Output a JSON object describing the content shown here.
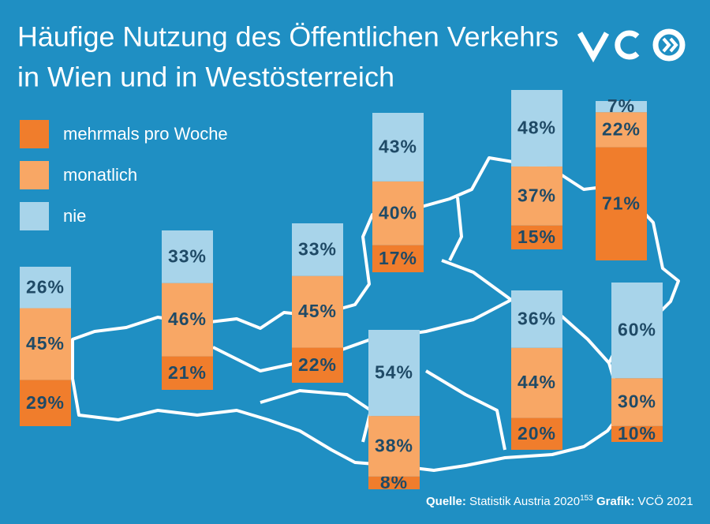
{
  "chart_data": {
    "type": "stacked_bar",
    "title": [
      "Häufige Nutzung des Öffentlichen Verkehrs",
      "in Wien und in Westösterreich"
    ],
    "categories": [
      null,
      null,
      null,
      null,
      null,
      null,
      null,
      null,
      null
    ],
    "series": [
      {
        "name": "mehrmals pro Woche",
        "color": "#f07d2c",
        "values": [
          29,
          21,
          22,
          17,
          15,
          71,
          8,
          20,
          10
        ],
        "value_labels": [
          "29%",
          "21%",
          "22%",
          "17%",
          "15%",
          "71%",
          "8%",
          "20%",
          "10%"
        ]
      },
      {
        "name": "monatlich",
        "color": "#f8a765",
        "values": [
          45,
          46,
          45,
          40,
          37,
          22,
          38,
          44,
          30
        ],
        "value_labels": [
          "45%",
          "46%",
          "45%",
          "40%",
          "37%",
          "22%",
          "38%",
          "44%",
          "30%"
        ]
      },
      {
        "name": "nie",
        "color": "#a8d4ea",
        "values": [
          26,
          33,
          33,
          43,
          48,
          7,
          54,
          36,
          60
        ],
        "value_labels": [
          "26%",
          "33%",
          "33%",
          "43%",
          "48%",
          "7%",
          "54%",
          "36%",
          "60%"
        ]
      }
    ],
    "source_label": "Quelle:",
    "source": "Statistik Austria 2020",
    "source_note": "153",
    "credit_label": "Grafik:",
    "credit": "VCÖ 2021"
  }
}
